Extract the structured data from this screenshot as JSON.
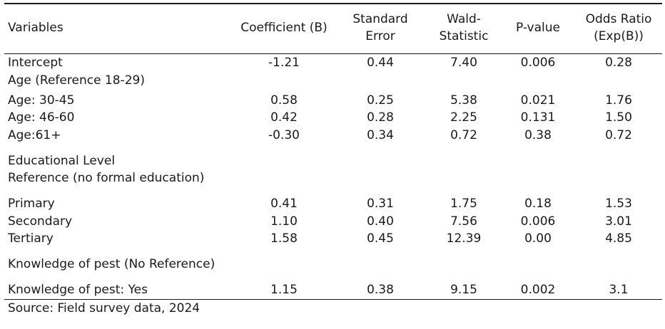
{
  "table": {
    "headers": [
      "Variables",
      "Coefficient (B)",
      "Standard\nError",
      "Wald-\nStatistic",
      "P-value",
      "Odds Ratio\n(Exp(B))"
    ],
    "rows": [
      {
        "label": "Intercept",
        "values": [
          "-1.21",
          "0.44",
          "7.40",
          "0.006",
          "0.28"
        ]
      },
      {
        "label": "Age (Reference 18-29)",
        "values": [
          "",
          "",
          "",
          "",
          ""
        ]
      },
      {
        "label": "Age: 30-45",
        "values": [
          "0.58",
          "0.25",
          "5.38",
          "0.021",
          "1.76"
        ]
      },
      {
        "label": "Age: 46-60",
        "values": [
          "0.42",
          "0.28",
          "2.25",
          "0.131",
          "1.50"
        ]
      },
      {
        "label": "Age:61+",
        "values": [
          "-0.30",
          "0.34",
          "0.72",
          "0.38",
          "0.72"
        ]
      },
      {
        "label": "Educational Level",
        "values": [
          "",
          "",
          "",
          "",
          ""
        ]
      },
      {
        "label": "Reference (no formal education)",
        "values": [
          "",
          "",
          "",
          "",
          ""
        ]
      },
      {
        "label": "Primary",
        "values": [
          "0.41",
          "0.31",
          "1.75",
          "0.18",
          "1.53"
        ]
      },
      {
        "label": "Secondary",
        "values": [
          "1.10",
          "0.40",
          "7.56",
          "0.006",
          "3.01"
        ]
      },
      {
        "label": "Tertiary",
        "values": [
          "1.58",
          "0.45",
          "12.39",
          "0.00",
          "4.85"
        ]
      },
      {
        "label": "Knowledge of pest (No Reference)",
        "values": [
          "",
          "",
          "",
          "",
          ""
        ]
      },
      {
        "label": "Knowledge of pest: Yes",
        "values": [
          "1.15",
          "0.38",
          "9.15",
          "0.002",
          "3.1"
        ]
      }
    ]
  },
  "source": "Source: Field survey data, 2024"
}
